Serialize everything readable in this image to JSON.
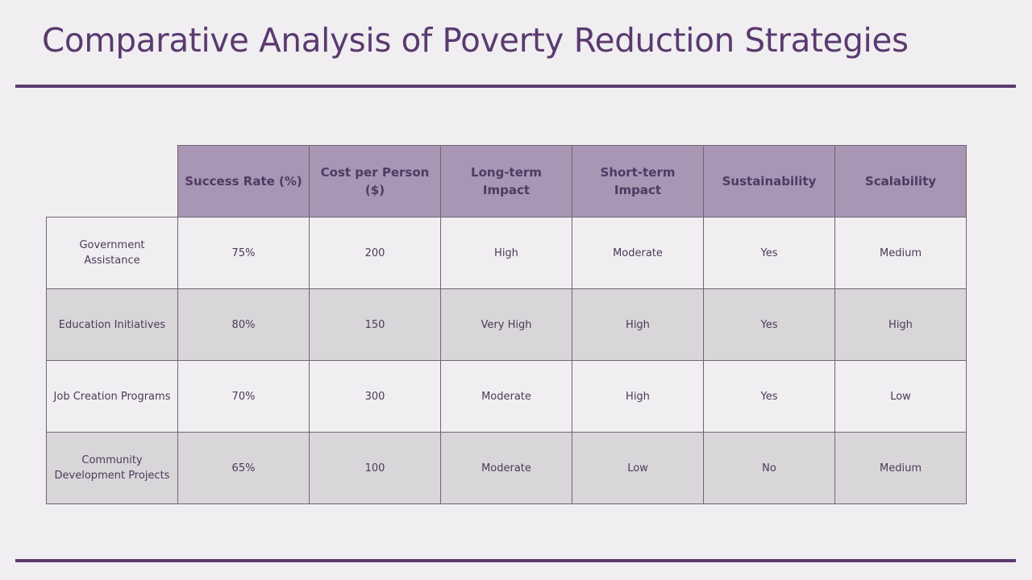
{
  "title": "Comparative Analysis of Poverty Reduction Strategies",
  "colors": {
    "accent": "#5b3b70",
    "header_bg": "#a995b4",
    "alt_row_bg": "#d9d6da",
    "background": "#f0eef1"
  },
  "table": {
    "headers": [
      "Success Rate (%)",
      "Cost per Person ($)",
      "Long-term Impact",
      "Short-term Impact",
      "Sustainability",
      "Scalability"
    ],
    "rows": [
      {
        "label": "Government Assistance",
        "cells": [
          "75%",
          "200",
          "High",
          "Moderate",
          "Yes",
          "Medium"
        ]
      },
      {
        "label": "Education Initiatives",
        "cells": [
          "80%",
          "150",
          "Very High",
          "High",
          "Yes",
          "High"
        ]
      },
      {
        "label": "Job Creation Programs",
        "cells": [
          "70%",
          "300",
          "Moderate",
          "High",
          "Yes",
          "Low"
        ]
      },
      {
        "label": "Community Development Projects",
        "cells": [
          "65%",
          "100",
          "Moderate",
          "Low",
          "No",
          "Medium"
        ]
      }
    ]
  }
}
